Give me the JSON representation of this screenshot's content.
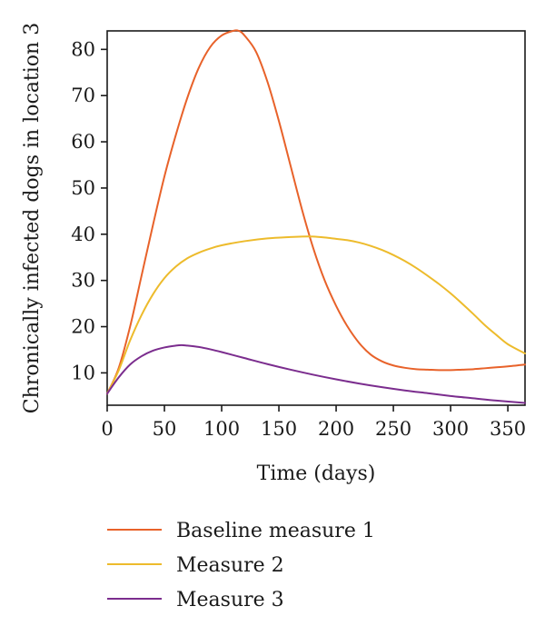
{
  "chart_data": {
    "type": "line",
    "title": "",
    "xlabel": "Time (days)",
    "ylabel": "Chronically infected dogs in location 3",
    "xlim": [
      0,
      365
    ],
    "ylim": [
      3,
      84
    ],
    "xticks": [
      0,
      50,
      100,
      150,
      200,
      250,
      300,
      350
    ],
    "yticks": [
      10,
      20,
      30,
      40,
      50,
      60,
      70,
      80
    ],
    "grid": false,
    "legend_position": "bottom",
    "series": [
      {
        "name": "Baseline measure 1",
        "color": "#e8622a",
        "x": [
          0,
          10,
          20,
          30,
          40,
          50,
          60,
          70,
          80,
          90,
          100,
          110,
          115,
          120,
          130,
          140,
          150,
          160,
          170,
          180,
          190,
          200,
          210,
          220,
          230,
          240,
          250,
          260,
          270,
          280,
          290,
          300,
          310,
          320,
          330,
          340,
          350,
          365
        ],
        "values": [
          5.5,
          11,
          20,
          31,
          42,
          52.5,
          61.5,
          69.5,
          76,
          80.5,
          83,
          84,
          84,
          83,
          79.5,
          73,
          64.5,
          55,
          45.5,
          37,
          30,
          24.5,
          20,
          16.5,
          14,
          12.5,
          11.6,
          11.1,
          10.8,
          10.7,
          10.6,
          10.6,
          10.7,
          10.8,
          11,
          11.2,
          11.4,
          11.8
        ]
      },
      {
        "name": "Measure 2",
        "color": "#edbb2c",
        "x": [
          0,
          10,
          20,
          30,
          40,
          50,
          60,
          70,
          80,
          90,
          100,
          120,
          140,
          160,
          170,
          180,
          190,
          200,
          210,
          220,
          230,
          240,
          250,
          260,
          270,
          280,
          290,
          300,
          310,
          320,
          330,
          340,
          350,
          365
        ],
        "values": [
          5.5,
          10.5,
          17,
          22.5,
          27,
          30.5,
          33,
          34.8,
          36,
          36.9,
          37.6,
          38.5,
          39.1,
          39.4,
          39.5,
          39.5,
          39.3,
          39,
          38.7,
          38.2,
          37.5,
          36.6,
          35.5,
          34.2,
          32.7,
          31,
          29.2,
          27.2,
          25,
          22.7,
          20.3,
          18.2,
          16.2,
          14.2
        ]
      },
      {
        "name": "Measure 3",
        "color": "#7b2d8e",
        "x": [
          0,
          10,
          20,
          30,
          40,
          50,
          60,
          65,
          70,
          80,
          90,
          100,
          120,
          140,
          160,
          180,
          200,
          220,
          240,
          260,
          280,
          300,
          320,
          340,
          365
        ],
        "values": [
          5.5,
          9,
          11.8,
          13.6,
          14.8,
          15.5,
          15.9,
          16,
          15.9,
          15.6,
          15.1,
          14.5,
          13.2,
          11.9,
          10.7,
          9.6,
          8.6,
          7.7,
          6.9,
          6.2,
          5.6,
          5,
          4.5,
          4,
          3.5
        ]
      }
    ]
  }
}
